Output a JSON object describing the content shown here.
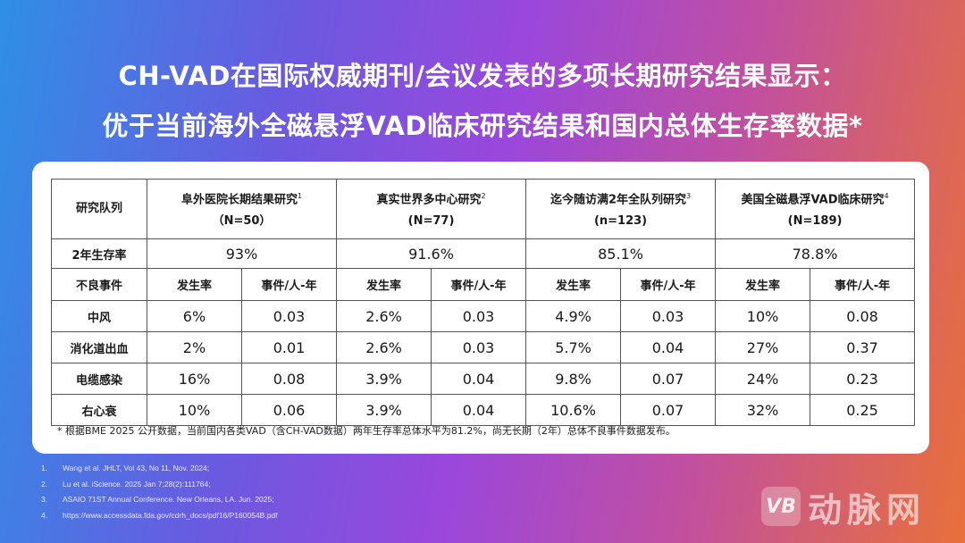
{
  "title": {
    "line1": "CH-VAD在国际权威期刊/会议发表的多项长期研究结果显示：",
    "line2": "优于当前海外全磁悬浮VAD临床研究结果和国内总体生存率数据*"
  },
  "table": {
    "corner_label": "研究队列",
    "studies": [
      {
        "name": "阜外医院长期结果研究",
        "ref": "1",
        "n": "（N=50）",
        "survival": "93%"
      },
      {
        "name": "真实世界多中心研究",
        "ref": "2",
        "n": "(N=77)",
        "survival": "91.6%"
      },
      {
        "name": "迄今随访满2年全队列研究",
        "ref": "3",
        "n": "(n=123)",
        "survival": "85.1%"
      },
      {
        "name": "美国全磁悬浮VAD临床研究",
        "ref": "4",
        "n": "(N=189)",
        "survival": "78.8%"
      }
    ],
    "survival_label": "2年生存率",
    "adverse_label": "不良事件",
    "rate_label": "发生率",
    "per_label": "事件/人-年",
    "events": [
      {
        "name": "中风",
        "values": [
          "6%",
          "0.03",
          "2.6%",
          "0.03",
          "4.9%",
          "0.03",
          "10%",
          "0.08"
        ]
      },
      {
        "name": "消化道出血",
        "values": [
          "2%",
          "0.01",
          "2.6%",
          "0.03",
          "5.7%",
          "0.04",
          "27%",
          "0.37"
        ]
      },
      {
        "name": "电缆感染",
        "values": [
          "16%",
          "0.08",
          "3.9%",
          "0.04",
          "9.8%",
          "0.07",
          "24%",
          "0.23"
        ]
      },
      {
        "name": "右心衰",
        "values": [
          "10%",
          "0.06",
          "3.9%",
          "0.04",
          "10.6%",
          "0.07",
          "32%",
          "0.25"
        ]
      }
    ],
    "footnote": "* 根据BME 2025 公开数据，当前国内各类VAD（含CH-VAD数据）两年生存率总体水平为81.2%，尚无长期（2年）总体不良事件数据发布。"
  },
  "references": [
    {
      "num": "1.",
      "text": "Wang et al. JHLT, Vol 43, No 11, Nov. 2024;"
    },
    {
      "num": "2.",
      "text": "Lu et al. iScience. 2025 Jan 7;28(2):111764;"
    },
    {
      "num": "3.",
      "text": "ASAIO 71ST Annual Conference. New Orleans, LA. Jun. 2025;"
    },
    {
      "num": "4.",
      "text": "https://www.accessdata.fda.gov/cdrh_docs/pdf16/P160054B.pdf"
    }
  ],
  "logo": {
    "mark": "VB",
    "text": "动脉网"
  }
}
